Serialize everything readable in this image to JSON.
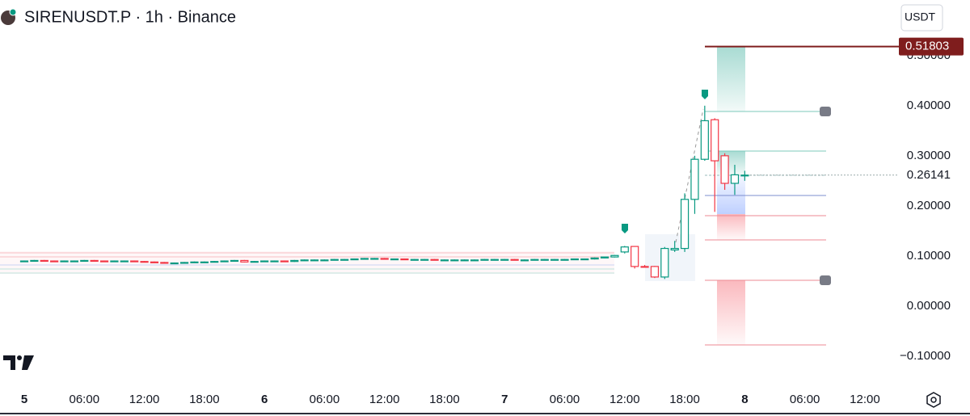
{
  "header": {
    "title": "SIRENUSDT.P · 1h · Binance",
    "currency": "USDT"
  },
  "chart_data": {
    "type": "candlestick",
    "categories": [
      "5",
      null,
      null,
      null,
      null,
      null,
      "06:00",
      null,
      null,
      null,
      null,
      null,
      "12:00",
      null,
      null,
      null,
      null,
      null,
      "18:00",
      null,
      null,
      null,
      null,
      null,
      "6",
      null,
      null,
      null,
      null,
      null,
      "06:00",
      null,
      null,
      null,
      null,
      null,
      "12:00",
      null,
      null,
      null,
      null,
      null,
      "18:00",
      null,
      null,
      null,
      null,
      null,
      "7",
      null,
      null,
      null,
      null,
      null,
      "06:00",
      null,
      null,
      null,
      null,
      null,
      "12:00",
      null,
      null,
      null,
      null,
      null,
      "18:00",
      null,
      null,
      null,
      null,
      null,
      "8",
      null,
      null,
      null,
      null,
      null,
      "06:00",
      null,
      null,
      null,
      null,
      null,
      "12:00"
    ],
    "open": [
      0.09,
      0.09,
      0.091,
      0.09,
      0.089,
      0.09,
      0.09,
      0.091,
      0.09,
      0.089,
      0.09,
      0.09,
      0.089,
      0.088,
      0.087,
      0.086,
      0.086,
      0.087,
      0.088,
      0.088,
      0.089,
      0.09,
      0.091,
      0.088,
      0.089,
      0.09,
      0.09,
      0.089,
      0.091,
      0.092,
      0.092,
      0.092,
      0.093,
      0.093,
      0.094,
      0.095,
      0.095,
      0.094,
      0.094,
      0.093,
      0.093,
      0.093,
      0.092,
      0.092,
      0.092,
      0.092,
      0.092,
      0.093,
      0.093,
      0.093,
      0.092,
      0.092,
      0.093,
      0.093,
      0.093,
      0.093,
      0.094,
      0.094,
      0.096,
      0.098,
      0.108,
      0.119,
      0.079,
      0.079,
      0.058,
      0.112,
      0.115,
      0.213,
      0.293,
      0.372,
      0.3,
      0.245,
      0.26,
      null,
      null,
      null,
      null,
      null,
      null,
      null,
      null,
      null,
      null,
      null,
      null
    ],
    "high": [
      0.091,
      0.092,
      0.092,
      0.091,
      0.091,
      0.091,
      0.092,
      0.092,
      0.091,
      0.091,
      0.091,
      0.091,
      0.09,
      0.089,
      0.088,
      0.087,
      0.088,
      0.089,
      0.089,
      0.09,
      0.091,
      0.092,
      0.092,
      0.09,
      0.091,
      0.091,
      0.091,
      0.092,
      0.093,
      0.093,
      0.093,
      0.094,
      0.094,
      0.095,
      0.096,
      0.096,
      0.096,
      0.095,
      0.095,
      0.094,
      0.094,
      0.094,
      0.093,
      0.093,
      0.093,
      0.093,
      0.094,
      0.094,
      0.094,
      0.094,
      0.093,
      0.094,
      0.094,
      0.094,
      0.094,
      0.095,
      0.095,
      0.097,
      0.099,
      0.102,
      0.12,
      0.12,
      0.082,
      0.08,
      0.118,
      0.13,
      0.225,
      0.3,
      0.4,
      0.375,
      0.305,
      0.282,
      0.27,
      null,
      null,
      null,
      null,
      null,
      null,
      null,
      null,
      null,
      null,
      null,
      null
    ],
    "low": [
      0.089,
      0.089,
      0.089,
      0.088,
      0.088,
      0.089,
      0.089,
      0.089,
      0.088,
      0.088,
      0.089,
      0.088,
      0.087,
      0.086,
      0.085,
      0.085,
      0.085,
      0.086,
      0.087,
      0.087,
      0.088,
      0.089,
      0.087,
      0.087,
      0.088,
      0.089,
      0.088,
      0.088,
      0.09,
      0.091,
      0.091,
      0.091,
      0.092,
      0.092,
      0.093,
      0.094,
      0.093,
      0.093,
      0.092,
      0.092,
      0.092,
      0.091,
      0.091,
      0.091,
      0.091,
      0.091,
      0.091,
      0.092,
      0.092,
      0.091,
      0.091,
      0.091,
      0.092,
      0.092,
      0.092,
      0.092,
      0.093,
      0.093,
      0.095,
      0.097,
      0.105,
      0.075,
      0.077,
      0.056,
      0.054,
      0.108,
      0.108,
      0.184,
      0.29,
      0.188,
      0.232,
      0.222,
      0.25,
      null,
      null,
      null,
      null,
      null,
      null,
      null,
      null,
      null,
      null,
      null,
      null
    ],
    "close": [
      0.09,
      0.091,
      0.09,
      0.089,
      0.09,
      0.09,
      0.091,
      0.09,
      0.089,
      0.09,
      0.09,
      0.089,
      0.088,
      0.087,
      0.086,
      0.086,
      0.087,
      0.088,
      0.088,
      0.089,
      0.09,
      0.091,
      0.088,
      0.089,
      0.09,
      0.09,
      0.089,
      0.091,
      0.092,
      0.092,
      0.092,
      0.093,
      0.093,
      0.094,
      0.095,
      0.095,
      0.094,
      0.094,
      0.093,
      0.093,
      0.093,
      0.092,
      0.092,
      0.092,
      0.092,
      0.092,
      0.093,
      0.093,
      0.093,
      0.092,
      0.092,
      0.093,
      0.093,
      0.093,
      0.093,
      0.094,
      0.094,
      0.096,
      0.098,
      0.101,
      0.118,
      0.079,
      0.078,
      0.058,
      0.115,
      0.115,
      0.213,
      0.293,
      0.37,
      0.29,
      0.245,
      0.262,
      0.26141,
      null,
      null,
      null,
      null,
      null,
      null,
      null,
      null,
      null,
      null,
      null,
      null
    ],
    "up_color": "#089981",
    "down_color": "#f23645",
    "ylim": [
      -0.155,
      0.611
    ],
    "yticks": [
      {
        "value": -0.1,
        "label": "−0.10000"
      },
      {
        "value": 0,
        "label": "0.00000"
      },
      {
        "value": 0.1,
        "label": "0.10000"
      },
      {
        "value": 0.2,
        "label": "0.20000"
      },
      {
        "value": 0.3,
        "label": "0.30000"
      },
      {
        "value": 0.4,
        "label": "0.40000"
      },
      {
        "value": 0.5,
        "label": "0.50000"
      }
    ],
    "last_price": 0.26141,
    "alert_price": 0.51803
  }
}
